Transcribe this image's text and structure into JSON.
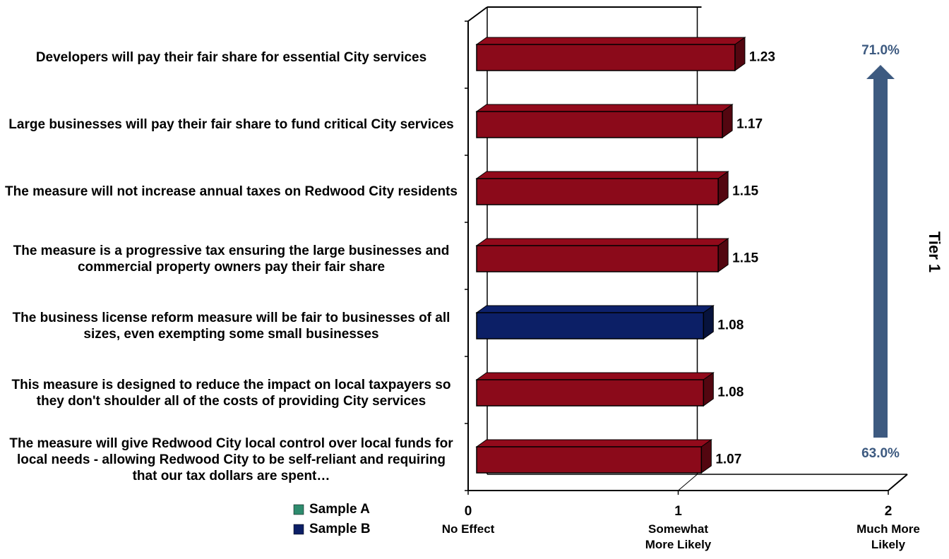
{
  "chart_data": {
    "type": "bar",
    "orientation": "horizontal",
    "categories": [
      "Developers will pay their fair share for essential City services",
      "Large businesses will pay their fair share to fund critical City services",
      "The measure will not increase annual taxes on Redwood City residents",
      "The measure is a progressive tax ensuring the large businesses and commercial property owners pay their fair share",
      "The business license reform measure will be fair to businesses of all sizes, even exempting some small businesses",
      "This measure is designed to reduce the impact on local taxpayers so they don't shoulder all of the costs of providing City services",
      "The measure will give Redwood City local control over local funds for local needs - allowing Redwood City to be self-reliant and requiring that our tax dollars are spent…"
    ],
    "values": [
      1.23,
      1.17,
      1.15,
      1.15,
      1.08,
      1.08,
      1.07
    ],
    "colors": [
      "#8b0a1a",
      "#8b0a1a",
      "#8b0a1a",
      "#8b0a1a",
      "#0c1f66",
      "#8b0a1a",
      "#8b0a1a"
    ],
    "legend": [
      {
        "name": "Sample A",
        "color": "#2e8b6e"
      },
      {
        "name": "Sample B",
        "color": "#0c1f66"
      }
    ],
    "xlim": [
      0,
      2
    ],
    "xticks": [
      0,
      1,
      2
    ],
    "xtick_captions": [
      "No Effect",
      "Somewhat More  Likely",
      "Much More Likely"
    ],
    "annotations": {
      "arrow_top": "71.0%",
      "arrow_bottom": "63.0%",
      "tier": "Tier 1",
      "color": "#3d5a80"
    },
    "grid": true
  }
}
